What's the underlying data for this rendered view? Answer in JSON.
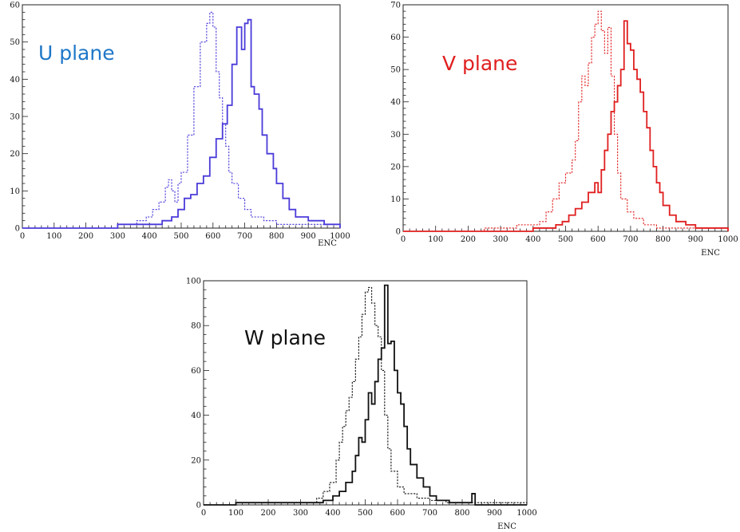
{
  "chart_data": [
    {
      "type": "line",
      "panel_label": "U plane",
      "label_color": "#1f77c8",
      "line_color": "#4a3bd9",
      "xlabel": "ENC",
      "ylabel": "",
      "xlim": [
        0,
        1000
      ],
      "ylim": [
        0,
        60
      ],
      "xticks": [
        0,
        100,
        200,
        300,
        400,
        500,
        600,
        700,
        800,
        900,
        1000
      ],
      "yticks": [
        0,
        10,
        20,
        30,
        40,
        50,
        60
      ],
      "series": [
        {
          "style": "solid",
          "bins": [
            [
              0,
              0
            ],
            [
              300,
              1
            ],
            [
              440,
              2
            ],
            [
              470,
              3
            ],
            [
              490,
              5
            ],
            [
              510,
              8
            ],
            [
              530,
              9
            ],
            [
              550,
              12
            ],
            [
              570,
              14
            ],
            [
              590,
              19
            ],
            [
              610,
              24
            ],
            [
              630,
              28
            ],
            [
              645,
              33
            ],
            [
              660,
              44
            ],
            [
              675,
              54
            ],
            [
              690,
              48
            ],
            [
              700,
              55
            ],
            [
              710,
              56
            ],
            [
              720,
              38
            ],
            [
              730,
              36
            ],
            [
              745,
              32
            ],
            [
              755,
              25
            ],
            [
              770,
              20
            ],
            [
              790,
              16
            ],
            [
              800,
              12
            ],
            [
              820,
              8
            ],
            [
              840,
              5
            ],
            [
              860,
              3
            ],
            [
              900,
              2
            ],
            [
              950,
              1
            ],
            [
              1000,
              0
            ]
          ]
        },
        {
          "style": "dashed",
          "bins": [
            [
              0,
              0
            ],
            [
              300,
              1
            ],
            [
              360,
              2
            ],
            [
              390,
              3
            ],
            [
              410,
              5
            ],
            [
              430,
              7
            ],
            [
              450,
              11
            ],
            [
              460,
              13
            ],
            [
              470,
              10
            ],
            [
              480,
              7
            ],
            [
              490,
              12
            ],
            [
              500,
              15
            ],
            [
              520,
              25
            ],
            [
              540,
              38
            ],
            [
              560,
              50
            ],
            [
              580,
              55
            ],
            [
              590,
              58
            ],
            [
              600,
              54
            ],
            [
              610,
              42
            ],
            [
              620,
              35
            ],
            [
              630,
              28
            ],
            [
              640,
              22
            ],
            [
              650,
              15
            ],
            [
              660,
              12
            ],
            [
              680,
              8
            ],
            [
              700,
              5
            ],
            [
              720,
              3
            ],
            [
              760,
              2
            ],
            [
              800,
              1
            ],
            [
              1000,
              0
            ]
          ]
        }
      ]
    },
    {
      "type": "line",
      "panel_label": "V plane",
      "label_color": "#e01f1f",
      "line_color": "#e01f1f",
      "xlabel": "ENC",
      "ylabel": "",
      "xlim": [
        0,
        1000
      ],
      "ylim": [
        0,
        70
      ],
      "xticks": [
        0,
        100,
        200,
        300,
        400,
        500,
        600,
        700,
        800,
        900,
        1000
      ],
      "yticks": [
        0,
        10,
        20,
        30,
        40,
        50,
        60,
        70
      ],
      "series": [
        {
          "style": "solid",
          "bins": [
            [
              0,
              0
            ],
            [
              400,
              1
            ],
            [
              470,
              2
            ],
            [
              490,
              3
            ],
            [
              510,
              5
            ],
            [
              530,
              7
            ],
            [
              550,
              9
            ],
            [
              570,
              12
            ],
            [
              590,
              15
            ],
            [
              600,
              12
            ],
            [
              610,
              19
            ],
            [
              620,
              25
            ],
            [
              630,
              30
            ],
            [
              640,
              37
            ],
            [
              650,
              40
            ],
            [
              660,
              45
            ],
            [
              670,
              50
            ],
            [
              680,
              65
            ],
            [
              690,
              58
            ],
            [
              700,
              56
            ],
            [
              710,
              50
            ],
            [
              720,
              47
            ],
            [
              730,
              43
            ],
            [
              740,
              37
            ],
            [
              750,
              32
            ],
            [
              760,
              25
            ],
            [
              770,
              20
            ],
            [
              780,
              15
            ],
            [
              790,
              12
            ],
            [
              800,
              8
            ],
            [
              820,
              5
            ],
            [
              840,
              3
            ],
            [
              870,
              2
            ],
            [
              900,
              1
            ],
            [
              1000,
              0
            ]
          ]
        },
        {
          "style": "dashed",
          "bins": [
            [
              0,
              0
            ],
            [
              250,
              1
            ],
            [
              350,
              2
            ],
            [
              420,
              3
            ],
            [
              440,
              6
            ],
            [
              460,
              10
            ],
            [
              480,
              15
            ],
            [
              500,
              18
            ],
            [
              520,
              22
            ],
            [
              530,
              28
            ],
            [
              540,
              40
            ],
            [
              550,
              48
            ],
            [
              560,
              45
            ],
            [
              570,
              52
            ],
            [
              580,
              60
            ],
            [
              590,
              64
            ],
            [
              600,
              68
            ],
            [
              610,
              62
            ],
            [
              620,
              55
            ],
            [
              630,
              63
            ],
            [
              640,
              48
            ],
            [
              650,
              30
            ],
            [
              660,
              18
            ],
            [
              670,
              10
            ],
            [
              690,
              6
            ],
            [
              710,
              4
            ],
            [
              740,
              2
            ],
            [
              780,
              1
            ],
            [
              1000,
              0
            ]
          ]
        }
      ]
    },
    {
      "type": "line",
      "panel_label": "W plane",
      "label_color": "#111111",
      "line_color": "#111111",
      "xlabel": "ENC",
      "ylabel": "",
      "xlim": [
        0,
        1000
      ],
      "ylim": [
        0,
        100
      ],
      "xticks": [
        0,
        100,
        200,
        300,
        400,
        500,
        600,
        700,
        800,
        900,
        1000
      ],
      "yticks": [
        0,
        20,
        40,
        60,
        80,
        100
      ],
      "series": [
        {
          "style": "solid",
          "bins": [
            [
              0,
              0
            ],
            [
              100,
              1
            ],
            [
              370,
              2
            ],
            [
              400,
              4
            ],
            [
              420,
              6
            ],
            [
              440,
              10
            ],
            [
              460,
              15
            ],
            [
              470,
              22
            ],
            [
              480,
              30
            ],
            [
              490,
              28
            ],
            [
              500,
              38
            ],
            [
              510,
              50
            ],
            [
              520,
              45
            ],
            [
              530,
              55
            ],
            [
              540,
              65
            ],
            [
              550,
              70
            ],
            [
              560,
              98
            ],
            [
              570,
              72
            ],
            [
              580,
              73
            ],
            [
              590,
              60
            ],
            [
              600,
              50
            ],
            [
              610,
              45
            ],
            [
              620,
              35
            ],
            [
              630,
              25
            ],
            [
              640,
              18
            ],
            [
              660,
              12
            ],
            [
              680,
              8
            ],
            [
              700,
              4
            ],
            [
              720,
              2
            ],
            [
              760,
              1
            ],
            [
              830,
              5
            ],
            [
              840,
              0
            ],
            [
              1000,
              0
            ]
          ]
        },
        {
          "style": "dashed",
          "bins": [
            [
              0,
              0
            ],
            [
              300,
              1
            ],
            [
              350,
              3
            ],
            [
              370,
              6
            ],
            [
              390,
              10
            ],
            [
              410,
              20
            ],
            [
              420,
              28
            ],
            [
              430,
              35
            ],
            [
              440,
              42
            ],
            [
              450,
              48
            ],
            [
              460,
              55
            ],
            [
              470,
              65
            ],
            [
              480,
              75
            ],
            [
              490,
              85
            ],
            [
              500,
              95
            ],
            [
              510,
              97
            ],
            [
              520,
              90
            ],
            [
              530,
              80
            ],
            [
              540,
              75
            ],
            [
              550,
              60
            ],
            [
              560,
              40
            ],
            [
              570,
              25
            ],
            [
              580,
              15
            ],
            [
              600,
              8
            ],
            [
              620,
              5
            ],
            [
              660,
              3
            ],
            [
              700,
              2
            ],
            [
              750,
              1
            ],
            [
              1000,
              0
            ]
          ]
        }
      ]
    }
  ]
}
